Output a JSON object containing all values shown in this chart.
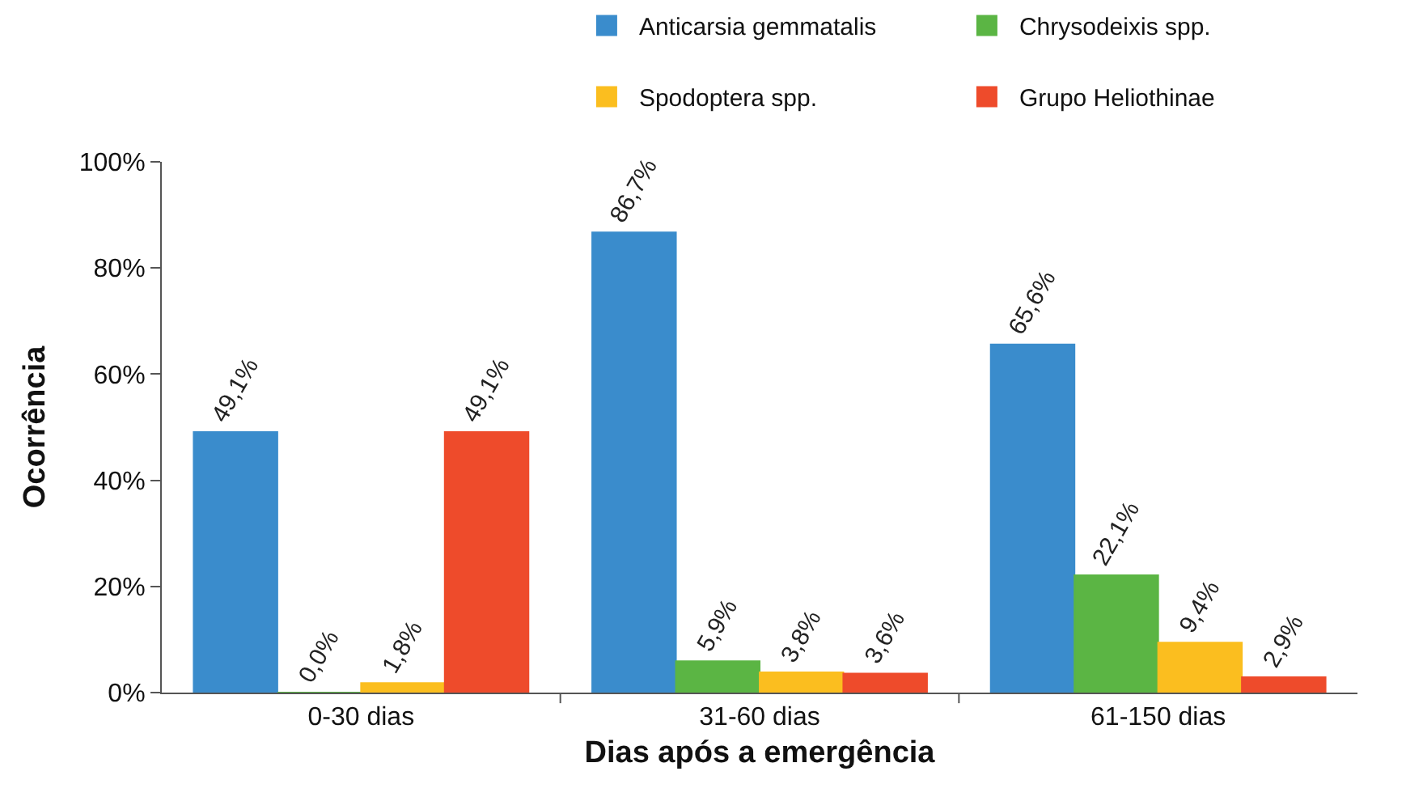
{
  "chart_data": {
    "type": "bar",
    "xlabel": "Dias após a emergência",
    "ylabel": "Ocorrência",
    "categories": [
      "0-30 dias",
      "31-60 dias",
      "61-150 dias"
    ],
    "series": [
      {
        "name": "Anticarsia gemmatalis",
        "color": "#3a8ccc",
        "values": [
          49.1,
          86.7,
          65.6
        ],
        "value_labels": [
          "49,1%",
          "86,7%",
          "65,6%"
        ]
      },
      {
        "name": "Chrysodeixis spp.",
        "color": "#5bb544",
        "values": [
          0.0,
          5.9,
          22.1
        ],
        "value_labels": [
          "0,0%",
          "5,9%",
          "22,1%"
        ]
      },
      {
        "name": "Spodoptera spp.",
        "color": "#fbbe1f",
        "values": [
          1.8,
          3.8,
          9.4
        ],
        "value_labels": [
          "1,8%",
          "3,8%",
          "9,4%"
        ]
      },
      {
        "name": "Grupo Heliothinae",
        "color": "#ee4b2b",
        "values": [
          49.1,
          3.6,
          2.9
        ],
        "value_labels": [
          "49,1%",
          "3,6%",
          "2,9%"
        ]
      }
    ],
    "ylim": [
      0,
      100
    ],
    "yticks": [
      {
        "value": 0,
        "label": "0%"
      },
      {
        "value": 20,
        "label": "20%"
      },
      {
        "value": 40,
        "label": "40%"
      },
      {
        "value": 60,
        "label": "60%"
      },
      {
        "value": 80,
        "label": "80%"
      },
      {
        "value": 100,
        "label": "100%"
      }
    ],
    "legend": "top"
  }
}
